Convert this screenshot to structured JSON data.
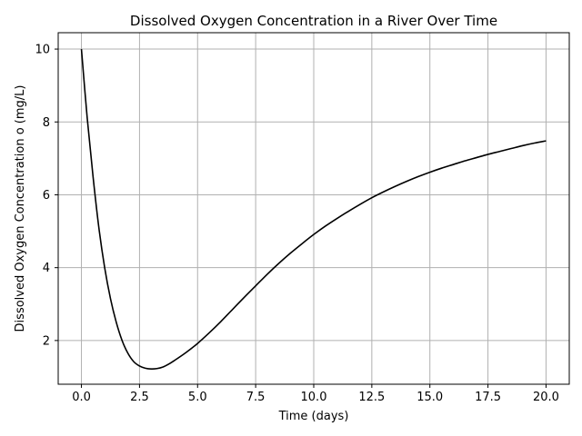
{
  "chart_data": {
    "type": "line",
    "title": "Dissolved Oxygen Concentration in a River Over Time",
    "xlabel": "Time (days)",
    "ylabel": "Dissolved Oxygen Concentration o (mg/L)",
    "xlim": [
      -1.0,
      21.0
    ],
    "ylim": [
      0.8,
      10.45
    ],
    "xticks": [
      0.0,
      2.5,
      5.0,
      7.5,
      10.0,
      12.5,
      15.0,
      17.5,
      20.0
    ],
    "xtick_labels": [
      "0.0",
      "2.5",
      "5.0",
      "7.5",
      "10.0",
      "12.5",
      "15.0",
      "17.5",
      "20.0"
    ],
    "yticks": [
      2,
      4,
      6,
      8,
      10
    ],
    "ytick_labels": [
      "2",
      "4",
      "6",
      "8",
      "10"
    ],
    "grid": true,
    "line_color": "#000000",
    "grid_color": "#b0b0b0",
    "series": [
      {
        "x": [
          0.0,
          0.25,
          0.5,
          0.75,
          1.0,
          1.25,
          1.5,
          1.75,
          2.0,
          2.25,
          2.5,
          2.75,
          3.0,
          3.25,
          3.5,
          3.75,
          4.0,
          4.5,
          5.0,
          5.5,
          6.0,
          6.5,
          7.0,
          7.5,
          8.0,
          8.5,
          9.0,
          9.5,
          10.0,
          10.5,
          11.0,
          11.5,
          12.0,
          12.5,
          13.0,
          13.5,
          14.0,
          14.5,
          15.0,
          15.5,
          16.0,
          16.5,
          17.0,
          17.5,
          18.0,
          18.5,
          19.0,
          19.5,
          20.0
        ],
        "y": [
          10.0,
          8.1,
          6.5,
          5.1,
          4.0,
          3.15,
          2.5,
          2.0,
          1.65,
          1.42,
          1.3,
          1.24,
          1.22,
          1.23,
          1.27,
          1.35,
          1.45,
          1.67,
          1.92,
          2.21,
          2.52,
          2.85,
          3.18,
          3.5,
          3.82,
          4.12,
          4.4,
          4.66,
          4.91,
          5.14,
          5.35,
          5.55,
          5.74,
          5.92,
          6.08,
          6.23,
          6.37,
          6.5,
          6.62,
          6.73,
          6.83,
          6.93,
          7.02,
          7.11,
          7.19,
          7.27,
          7.35,
          7.42,
          7.48
        ]
      }
    ]
  }
}
